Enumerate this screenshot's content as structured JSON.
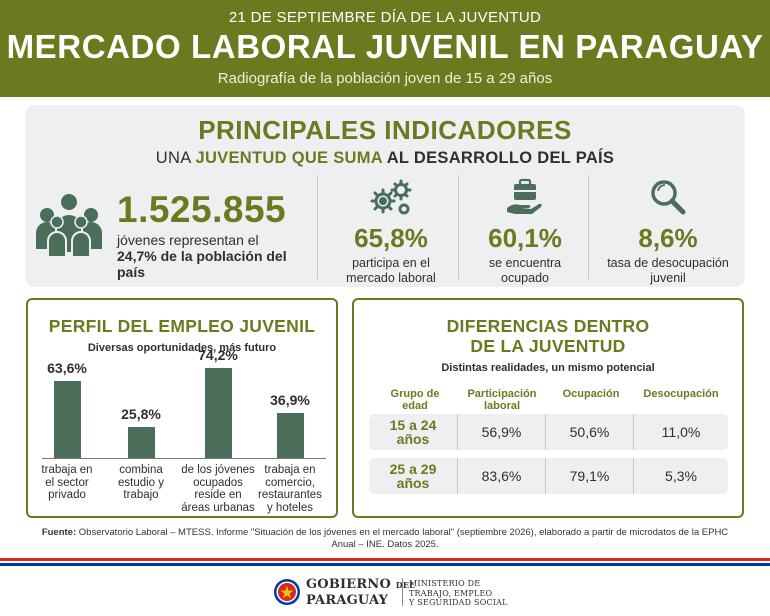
{
  "header": {
    "date_line": "21 DE SEPTIEMBRE DÍA DE LA JUVENTUD",
    "title": "MERCADO LABORAL JUVENIL EN PARAGUAY",
    "subtitle": "Radiografía de la población joven de 15 a 29 años",
    "background_color": "#6b7a1f"
  },
  "indicators": {
    "title": "PRINCIPALES INDICADORES",
    "subtitle_part1": "UNA ",
    "subtitle_highlight": "JUVENTUD QUE SUMA",
    "subtitle_part2": " AL DESARROLLO DEL PAÍS",
    "population": {
      "icon": "group-of-people-icon",
      "number": "1.525.855",
      "text_line1": "jóvenes representan el",
      "text_bold": "24,7% de la población del país"
    },
    "stats": [
      {
        "icon": "gears-icon",
        "value": "65,8%",
        "label_line1": "participa en el",
        "label_line2": "mercado laboral"
      },
      {
        "icon": "briefcase-hand-icon",
        "value": "60,1%",
        "label_line1": "se encuentra",
        "label_line2": "ocupado"
      },
      {
        "icon": "magnifier-icon",
        "value": "8,6%",
        "label_line1": "tasa de desocupación",
        "label_line2": "juvenil"
      }
    ]
  },
  "perfil": {
    "title": "PERFIL DEL EMPLEO JUVENIL",
    "subtitle": "Diversas oportunidades, más futuro",
    "bar_color": "#4a6e5a",
    "bars": [
      {
        "pct_label": "63,6%",
        "value": 63.6,
        "label": [
          "trabaja en",
          "el sector",
          "privado"
        ]
      },
      {
        "pct_label": "25,8%",
        "value": 25.8,
        "label": [
          "combina",
          "estudio y",
          "trabajo"
        ]
      },
      {
        "pct_label": "74,2%",
        "value": 74.2,
        "label": [
          "de los jóvenes",
          "ocupados",
          "reside en",
          "áreas urbanas"
        ]
      },
      {
        "pct_label": "36,9%",
        "value": 36.9,
        "label": [
          "trabaja en",
          "comercio,",
          "restaurantes",
          "y hoteles"
        ]
      }
    ]
  },
  "diferencias": {
    "title_line1": "DIFERENCIAS DENTRO",
    "title_line2": "DE LA JUVENTUD",
    "subtitle": "Distintas realidades, un mismo potencial",
    "headers": [
      [
        "Grupo de",
        "edad"
      ],
      [
        "Participación",
        "laboral"
      ],
      [
        "Ocupación"
      ],
      [
        "Desocupación"
      ]
    ],
    "rows": [
      {
        "age_line1": "15 a 24",
        "age_line2": "años",
        "participacion": "56,9%",
        "ocupacion": "50,6%",
        "desocupacion": "11,0%"
      },
      {
        "age_line1": "25 a 29",
        "age_line2": "años",
        "participacion": "83,6%",
        "ocupacion": "79,1%",
        "desocupacion": "5,3%"
      }
    ]
  },
  "footer": {
    "source_label": "Fuente:",
    "source_text": " Observatorio Laboral – MTESS. Informe \"Situación de los jóvenes en el mercado laboral\" (septiembre 2026), elaborado a partir de microdatos de la EPHC Anual – INE. Datos 2025.",
    "flag_colors": [
      "#d52b1e",
      "#ffffff",
      "#0038a8"
    ],
    "gov_line1": "GOBIERNO",
    "gov_del": "DEL",
    "gov_line2": "PARAGUAY",
    "ministry_lines": [
      "MINISTERIO DE",
      "TRABAJO, EMPLEO",
      "Y SEGURIDAD SOCIAL"
    ]
  }
}
